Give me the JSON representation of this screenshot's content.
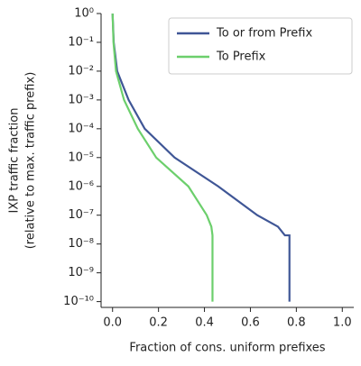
{
  "chart_data": {
    "type": "line",
    "ylabel": [
      "IXP traffic fraction",
      "(relative to max. traffic prefix)"
    ],
    "xlabel": "Fraction of cons. uniform prefixes",
    "log_y": true,
    "legend": "upper right",
    "xlim": [
      -0.05,
      1.05
    ],
    "xticks": [
      {
        "value": 0,
        "label": "0.0"
      },
      {
        "value": 0.2,
        "label": "0.2"
      },
      {
        "value": 0.4,
        "label": "0.4"
      },
      {
        "value": 0.6,
        "label": "0.6"
      },
      {
        "value": 0.8,
        "label": "0.8"
      },
      {
        "value": 1,
        "label": "1.0"
      }
    ],
    "ylim": [
      6.3e-11,
      1
    ],
    "yticks": [
      {
        "value": 1,
        "label": "10⁰"
      },
      {
        "value": 0.1,
        "label": "10⁻¹"
      },
      {
        "value": 0.01,
        "label": "10⁻²"
      },
      {
        "value": 0.001,
        "label": "10⁻³"
      },
      {
        "value": 0.0001,
        "label": "10⁻⁴"
      },
      {
        "value": 1e-05,
        "label": "10⁻⁵"
      },
      {
        "value": 1e-06,
        "label": "10⁻⁶"
      },
      {
        "value": 1e-07,
        "label": "10⁻⁷"
      },
      {
        "value": 1e-08,
        "label": "10⁻⁸"
      },
      {
        "value": 1e-09,
        "label": "10⁻⁹"
      },
      {
        "value": 1e-10,
        "label": "10⁻¹⁰"
      }
    ],
    "series": [
      {
        "name": "To or from Prefix",
        "color": "#3f5696",
        "x": [
          0,
          0.005,
          0.02,
          0.07,
          0.14,
          0.27,
          0.46,
          0.63,
          0.72,
          0.75,
          0.77,
          0.77
        ],
        "values": [
          1,
          0.1,
          0.01,
          0.001,
          0.0001,
          1e-05,
          1e-06,
          1e-07,
          4e-08,
          2e-08,
          2e-08,
          1e-10
        ]
      },
      {
        "name": "To Prefix",
        "color": "#6ccf6c",
        "x": [
          0,
          0.004,
          0.015,
          0.05,
          0.11,
          0.19,
          0.33,
          0.41,
          0.43,
          0.435,
          0.435
        ],
        "values": [
          1,
          0.1,
          0.01,
          0.001,
          0.0001,
          1e-05,
          1e-06,
          1e-07,
          4e-08,
          2e-08,
          1e-10
        ]
      }
    ]
  }
}
